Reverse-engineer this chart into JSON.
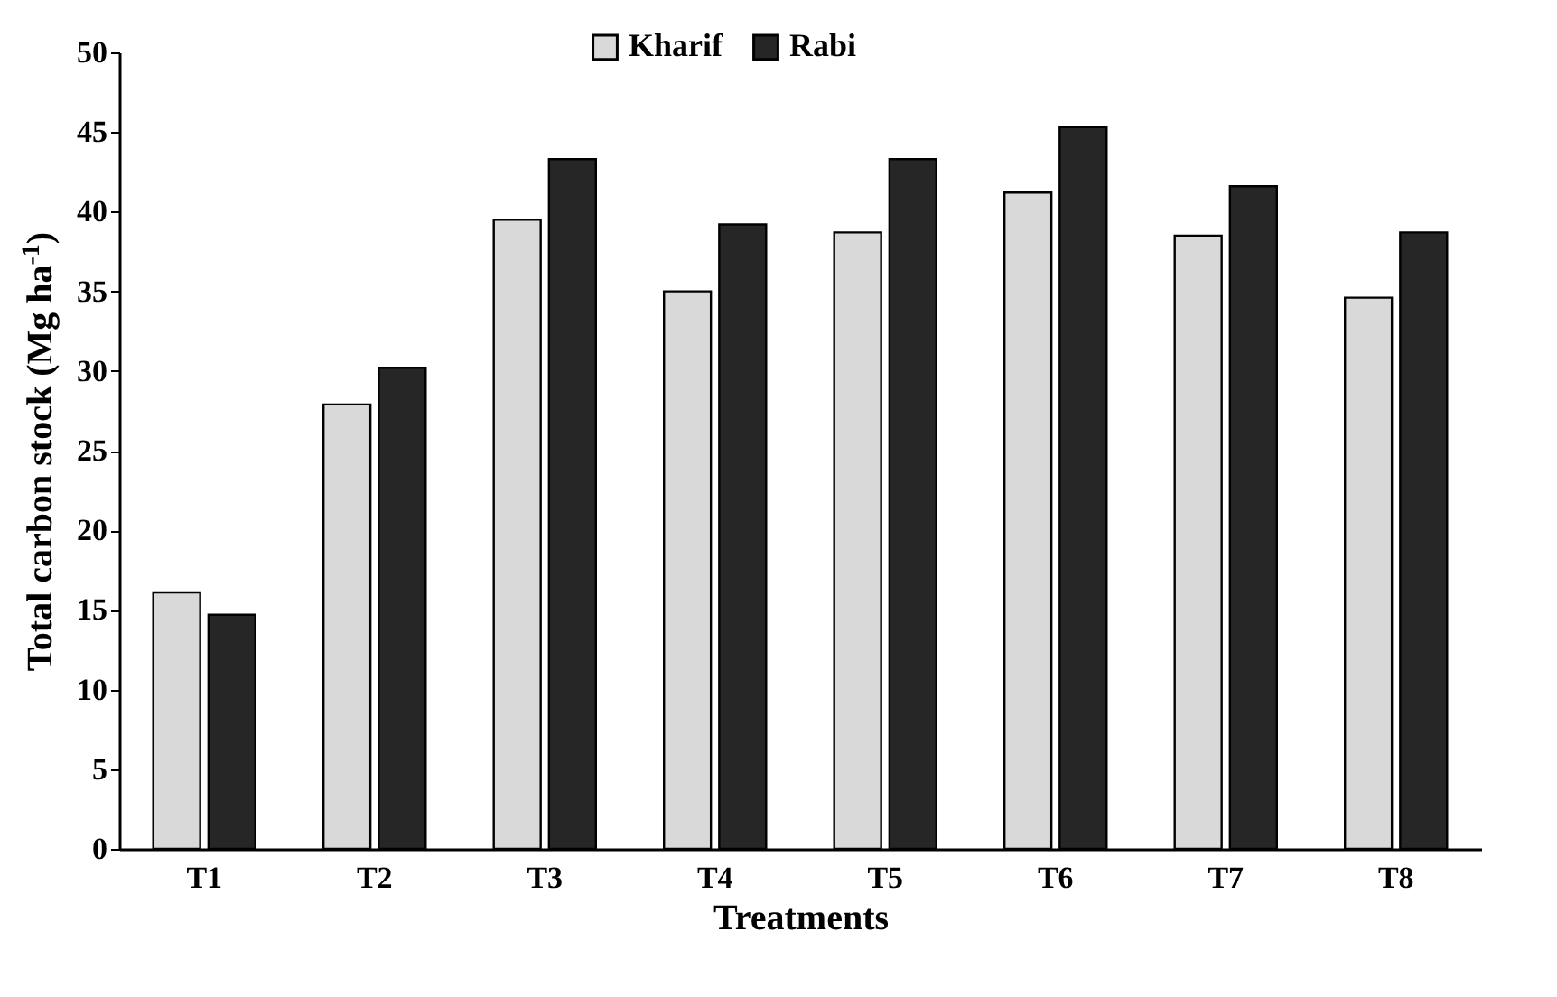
{
  "chart_data": {
    "type": "bar",
    "xlabel": "Treatments",
    "ylabel": "Total carbon stock (Mg ha$^{-1}$)",
    "categories": [
      "T1",
      "T2",
      "T3",
      "T4",
      "T5",
      "T6",
      "T7",
      "T8"
    ],
    "series": [
      {
        "name": "Kharif",
        "color": "#d9d9d9",
        "values": [
          16.1,
          27.9,
          39.5,
          35.0,
          38.7,
          41.2,
          38.5,
          34.6
        ]
      },
      {
        "name": "Rabi",
        "color": "#262626",
        "values": [
          14.7,
          30.2,
          43.3,
          39.2,
          43.3,
          45.3,
          41.6,
          38.7
        ]
      }
    ],
    "ylim": [
      0,
      50
    ],
    "yticks": [
      0,
      5,
      10,
      15,
      20,
      25,
      30,
      35,
      40,
      45,
      50
    ],
    "grid": false,
    "legend": "top"
  }
}
